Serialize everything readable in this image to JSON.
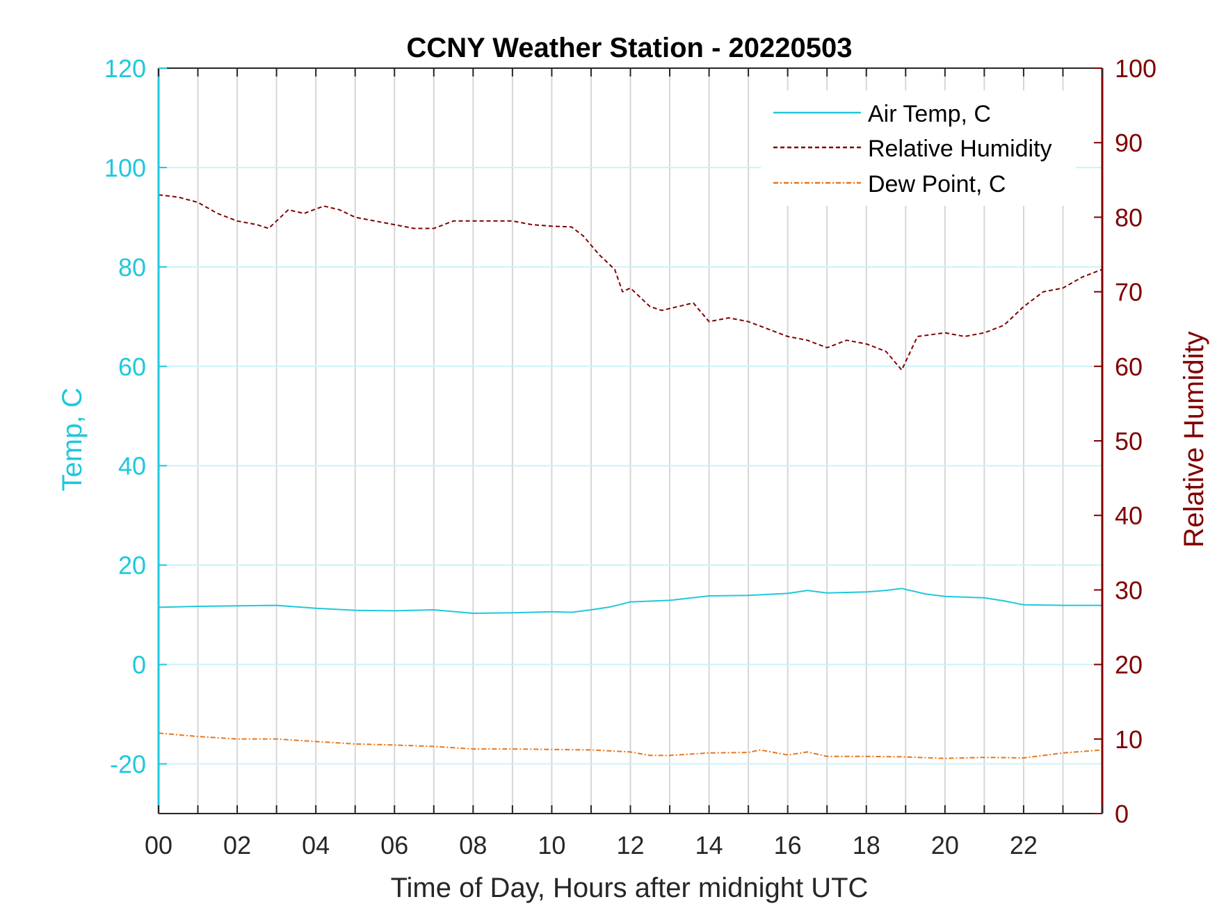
{
  "chart_data": {
    "type": "line",
    "title": "CCNY Weather Station - 20220503",
    "xlabel": "Time of Day, Hours after midnight UTC",
    "ylabel_left": "Temp, C",
    "ylabel_right": "Relative Humidity",
    "xlim": [
      0,
      24
    ],
    "ylim_left": [
      -30,
      120
    ],
    "ylim_right": [
      0,
      100
    ],
    "x_ticks": [
      "00",
      "02",
      "04",
      "06",
      "08",
      "10",
      "12",
      "14",
      "16",
      "18",
      "20",
      "22"
    ],
    "y_ticks_left": [
      "-20",
      "0",
      "20",
      "40",
      "60",
      "80",
      "100",
      "120"
    ],
    "y_ticks_right": [
      "0",
      "10",
      "20",
      "30",
      "40",
      "50",
      "60",
      "70",
      "80",
      "90",
      "100"
    ],
    "grid": true,
    "legend_position": "top-right",
    "series": [
      {
        "name": "Air Temp, C",
        "axis": "left",
        "style": "solid",
        "color": "#1ec8dc",
        "x": [
          0,
          1,
          2,
          3,
          4,
          5,
          6,
          7,
          8,
          9,
          10,
          10.5,
          11,
          11.5,
          12,
          13,
          14,
          15,
          16,
          16.5,
          17,
          18,
          18.5,
          18.9,
          19.5,
          20,
          21,
          21.5,
          22,
          23,
          24
        ],
        "y": [
          11.5,
          11.7,
          11.8,
          11.9,
          11.3,
          10.9,
          10.8,
          11.0,
          10.3,
          10.4,
          10.6,
          10.5,
          11.0,
          11.6,
          12.6,
          12.9,
          13.8,
          13.9,
          14.3,
          14.9,
          14.4,
          14.6,
          14.9,
          15.3,
          14.2,
          13.7,
          13.4,
          12.8,
          12.0,
          11.9,
          11.9
        ]
      },
      {
        "name": "Relative Humidity",
        "axis": "right",
        "style": "dashed",
        "color": "#800000",
        "x": [
          0,
          0.5,
          1,
          1.5,
          2,
          2.5,
          2.8,
          3.0,
          3.3,
          3.7,
          4.2,
          4.6,
          5.0,
          5.5,
          6.0,
          6.5,
          7.0,
          7.5,
          8.0,
          8.5,
          9.0,
          9.5,
          10.0,
          10.5,
          10.8,
          11.2,
          11.6,
          11.8,
          12.0,
          12.5,
          12.8,
          13.2,
          13.6,
          14.0,
          14.5,
          15.0,
          15.5,
          16.0,
          16.5,
          17.0,
          17.5,
          18.0,
          18.5,
          18.9,
          19.3,
          20.0,
          20.5,
          21.0,
          21.5,
          22.0,
          22.5,
          23.0,
          23.5,
          24.0
        ],
        "y": [
          83,
          82.7,
          82,
          80.5,
          79.5,
          79,
          78.5,
          79.5,
          81,
          80.5,
          81.5,
          81,
          80,
          79.5,
          79,
          78.5,
          78.5,
          79.5,
          79.5,
          79.5,
          79.5,
          79,
          78.8,
          78.7,
          77.5,
          75,
          73,
          70,
          70.5,
          68,
          67.5,
          68,
          68.5,
          66,
          66.5,
          66,
          65,
          64,
          63.5,
          62.5,
          63.5,
          63,
          62,
          59.5,
          64,
          64.5,
          64,
          64.5,
          65.5,
          68,
          70,
          70.5,
          72,
          73
        ]
      },
      {
        "name": "Dew Point, C",
        "axis": "left",
        "style": "dash-dot",
        "color": "#e8751a",
        "x": [
          0,
          1,
          2,
          3,
          4,
          5,
          6,
          7,
          8,
          9,
          10,
          11,
          12,
          12.5,
          13,
          14,
          15,
          15.3,
          16,
          16.5,
          17,
          18,
          19,
          20,
          21,
          22,
          23,
          24
        ],
        "y": [
          -13.8,
          -14.5,
          -15.0,
          -15.0,
          -15.5,
          -16.0,
          -16.2,
          -16.5,
          -17.0,
          -17.0,
          -17.1,
          -17.2,
          -17.6,
          -18.3,
          -18.3,
          -17.8,
          -17.7,
          -17.2,
          -18.2,
          -17.6,
          -18.5,
          -18.5,
          -18.6,
          -18.9,
          -18.7,
          -18.8,
          -17.8,
          -17.2
        ]
      }
    ]
  }
}
